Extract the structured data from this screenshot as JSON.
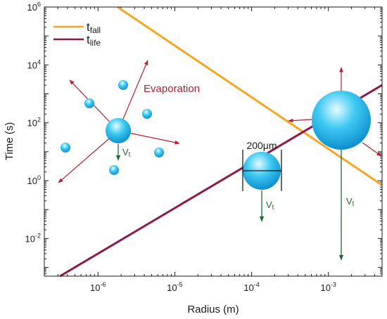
{
  "chart_data": {
    "type": "line",
    "xlabel": "Radius (m)",
    "ylabel": "Time (s)",
    "xscale": "log",
    "yscale": "log",
    "xlim": [
      2e-07,
      0.005
    ],
    "ylim": [
      0.0005,
      1000000
    ],
    "xticks": [
      {
        "base": "10",
        "exp": "-6",
        "value": 1e-06
      },
      {
        "base": "10",
        "exp": "-5",
        "value": 1e-05
      },
      {
        "base": "10",
        "exp": "-4",
        "value": 0.0001
      },
      {
        "base": "10",
        "exp": "-3",
        "value": 0.001
      }
    ],
    "yticks": [
      {
        "base": "10",
        "exp": "-2",
        "value": 0.01
      },
      {
        "base": "10",
        "exp": "0",
        "value": 1
      },
      {
        "base": "10",
        "exp": "2",
        "value": 100
      },
      {
        "base": "10",
        "exp": "4",
        "value": 10000
      },
      {
        "base": "10",
        "exp": "6",
        "value": 1000000
      }
    ],
    "grid": false,
    "legend_position": "top-left",
    "series": [
      {
        "name": "t",
        "subscript": "fall",
        "color": "#f5a623",
        "x": [
          1.8e-06,
          0.005
        ],
        "y": [
          1000000,
          0.7
        ]
      },
      {
        "name": "t",
        "subscript": "life",
        "color": "#8b1a4a",
        "x": [
          3.2e-07,
          0.005
        ],
        "y": [
          0.0005,
          2000
        ]
      }
    ],
    "annotations": {
      "evaporation": "Evaporation",
      "size_label": "200μm",
      "velocity": "V",
      "velocity_sub": "t"
    }
  },
  "colors": {
    "axis": "#1a1a1a",
    "arrow_red": "#b5202e",
    "arrow_green": "#1f6b2e",
    "drop_light": "#d8f6ff",
    "drop_mid": "#35c6f0",
    "drop_dark": "#0c8fd0"
  }
}
